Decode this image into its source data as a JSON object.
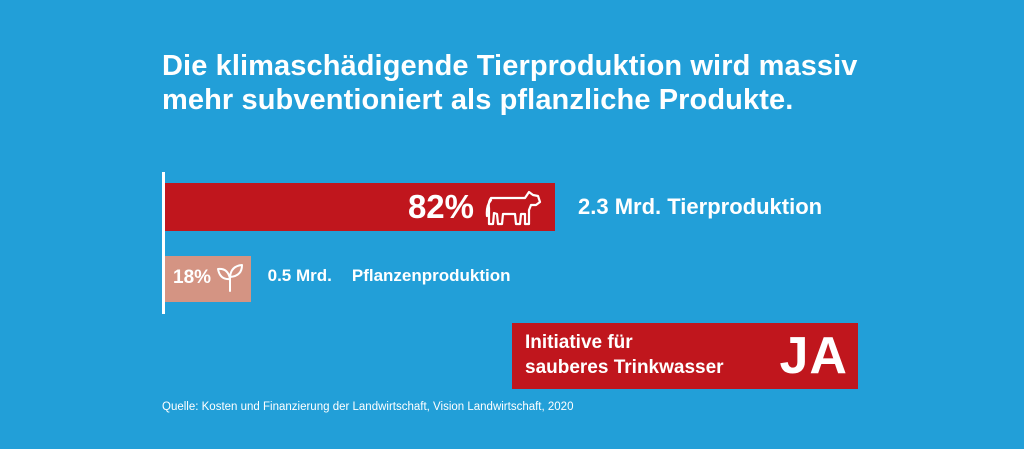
{
  "title_line1": "Die klimaschädigende Tierproduktion wird massiv",
  "title_line2": "mehr subventioniert als pflanzliche Produkte.",
  "chart_data": {
    "type": "bar",
    "orientation": "horizontal",
    "categories": [
      "Tierproduktion",
      "Pflanzenproduktion"
    ],
    "values": [
      82,
      18
    ],
    "value_labels": [
      "82%",
      "18%"
    ],
    "amount_labels": [
      "2.3 Mrd.",
      "0.5 Mrd."
    ],
    "category_labels": [
      "Tierproduktion",
      "Pflanzenproduktion"
    ],
    "icons": [
      "cow-icon",
      "plant-sprout-icon"
    ],
    "xlim": [
      0,
      100
    ],
    "colors": [
      "#c0161d",
      "#d49483"
    ],
    "grid": false
  },
  "badge": {
    "line1": "Initiative für",
    "line2": "sauberes Trinkwasser",
    "ja": "JA"
  },
  "source": "Quelle: Kosten und Finanzierung der Landwirtschaft, Vision Landwirtschaft, 2020",
  "colors": {
    "background": "#229fd8",
    "accent_red": "#c0161d",
    "plant_bar": "#d49483",
    "text": "#ffffff"
  }
}
